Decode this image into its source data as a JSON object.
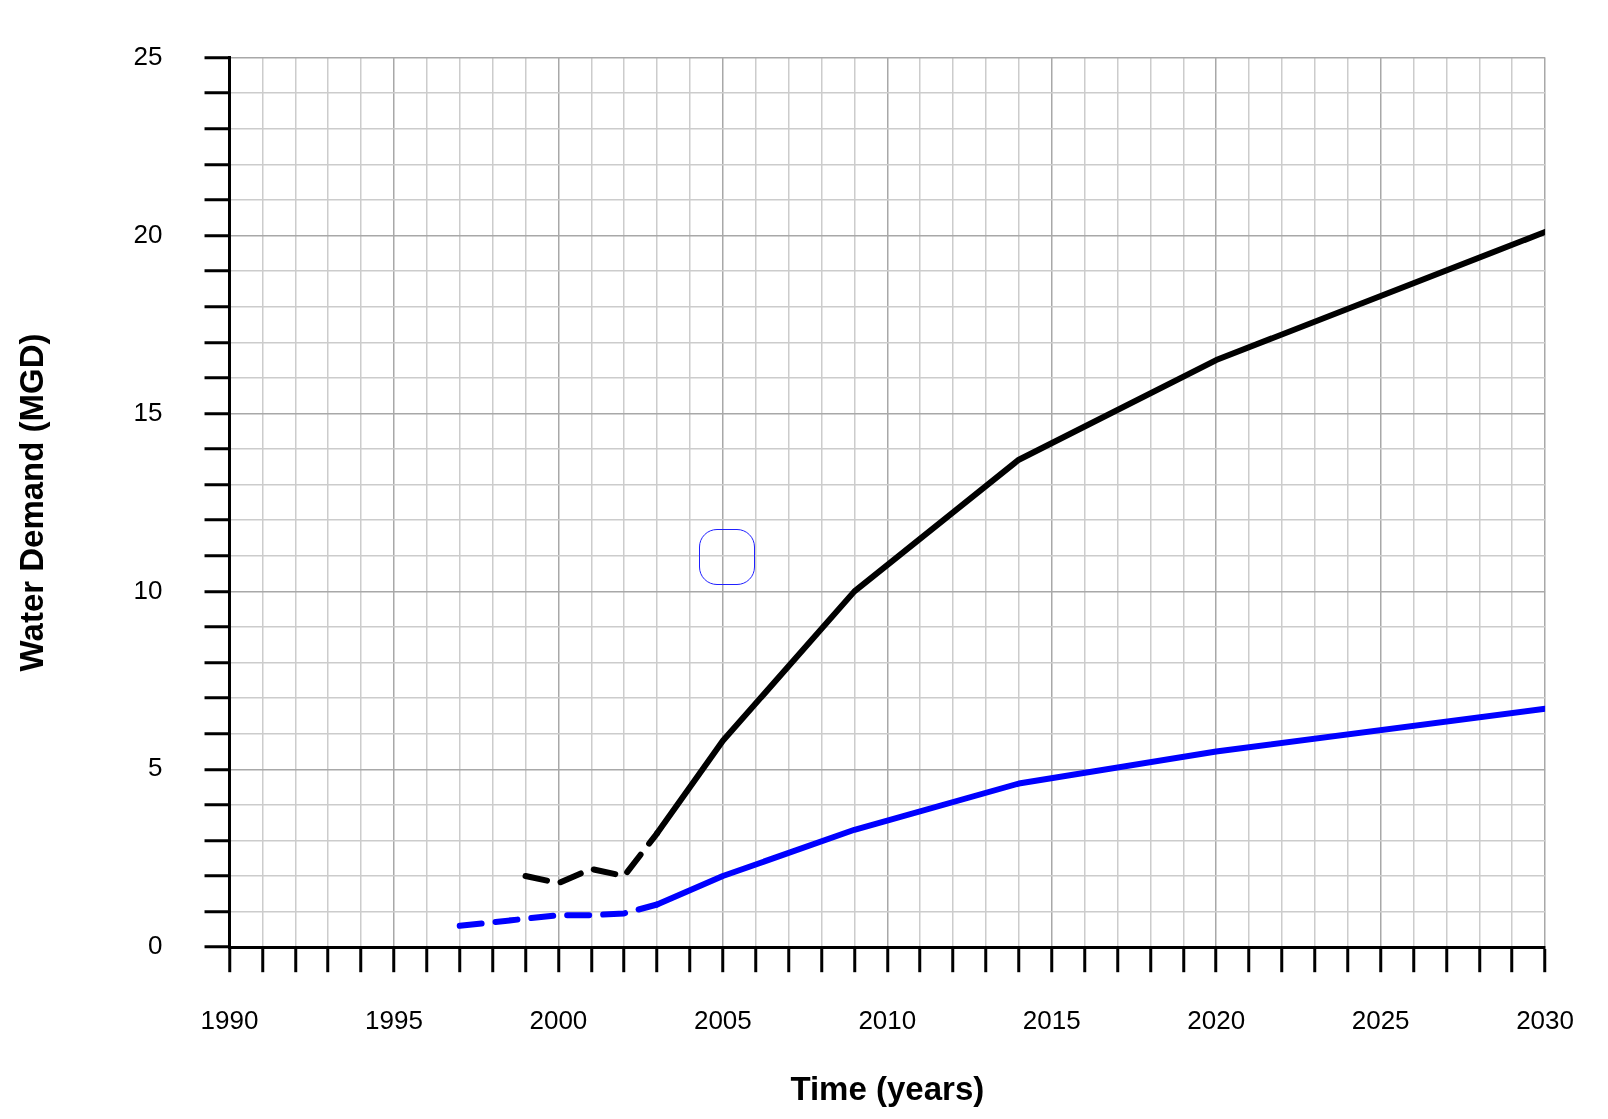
{
  "chart_data": {
    "type": "line",
    "xlabel": "Time (years)",
    "ylabel": "Water Demand (MGD)",
    "xlim": [
      1990,
      2030
    ],
    "ylim": [
      0,
      25
    ],
    "xticks": [
      1990,
      {
        "value": 1991,
        "label": null
      },
      {
        "value": 1992,
        "label": null
      },
      {
        "value": 1993,
        "label": null
      },
      {
        "value": 1994,
        "label": null
      },
      1995,
      {
        "value": 1996,
        "label": null
      },
      {
        "value": 1997,
        "label": null
      },
      {
        "value": 1998,
        "label": null
      },
      {
        "value": 1999,
        "label": null
      },
      2000,
      {
        "value": 2001,
        "label": null
      },
      {
        "value": 2002,
        "label": null
      },
      {
        "value": 2003,
        "label": null
      },
      {
        "value": 2004,
        "label": null
      },
      2005,
      {
        "value": 2006,
        "label": null
      },
      {
        "value": 2007,
        "label": null
      },
      {
        "value": 2008,
        "label": null
      },
      {
        "value": 2009,
        "label": null
      },
      2010,
      {
        "value": 2011,
        "label": null
      },
      {
        "value": 2012,
        "label": null
      },
      {
        "value": 2013,
        "label": null
      },
      {
        "value": 2014,
        "label": null
      },
      2015,
      {
        "value": 2016,
        "label": null
      },
      {
        "value": 2017,
        "label": null
      },
      {
        "value": 2018,
        "label": null
      },
      {
        "value": 2019,
        "label": null
      },
      2020,
      {
        "value": 2021,
        "label": null
      },
      {
        "value": 2022,
        "label": null
      },
      {
        "value": 2023,
        "label": null
      },
      {
        "value": 2024,
        "label": null
      },
      2025,
      {
        "value": 2026,
        "label": null
      },
      {
        "value": 2027,
        "label": null
      },
      {
        "value": 2028,
        "label": null
      },
      {
        "value": 2029,
        "label": null
      },
      2030
    ],
    "yticks": [
      0,
      {
        "value": 1,
        "label": null
      },
      {
        "value": 2,
        "label": null
      },
      {
        "value": 3,
        "label": null
      },
      {
        "value": 4,
        "label": null
      },
      5,
      {
        "value": 6,
        "label": null
      },
      {
        "value": 7,
        "label": null
      },
      {
        "value": 8,
        "label": null
      },
      {
        "value": 9,
        "label": null
      },
      10,
      {
        "value": 11,
        "label": null
      },
      {
        "value": 12,
        "label": null
      },
      {
        "value": 13,
        "label": null
      },
      {
        "value": 14,
        "label": null
      },
      15,
      {
        "value": 16,
        "label": null
      },
      {
        "value": 17,
        "label": null
      },
      {
        "value": 18,
        "label": null
      },
      {
        "value": 19,
        "label": null
      },
      20,
      {
        "value": 21,
        "label": null
      },
      {
        "value": 22,
        "label": null
      },
      {
        "value": 23,
        "label": null
      },
      {
        "value": 24,
        "label": null
      },
      25
    ],
    "grid": true,
    "legend": false,
    "marker": "none",
    "series": [
      {
        "color": "#000000",
        "line_style": "dashed",
        "x": [
          1999,
          2000,
          2001,
          2002,
          2003
        ],
        "values": [
          2.0,
          1.8,
          2.2,
          2.0,
          3.2
        ]
      },
      {
        "color": "#000000",
        "line_style": "solid",
        "x": [
          2003,
          2005,
          2009,
          2014,
          2020,
          2030
        ],
        "values": [
          3.2,
          5.8,
          10.0,
          13.7,
          16.5,
          20.1
        ]
      },
      {
        "color": "#0000ff",
        "line_style": "dashed",
        "x": [
          1997,
          1998,
          1999,
          2000,
          2001,
          2002,
          2003
        ],
        "values": [
          0.6,
          0.7,
          0.8,
          0.9,
          0.9,
          0.95,
          1.2
        ]
      },
      {
        "color": "#0000ff",
        "line_style": "solid",
        "x": [
          2003,
          2005,
          2009,
          2014,
          2020,
          2030
        ],
        "values": [
          1.2,
          2.0,
          3.3,
          4.6,
          5.5,
          6.7
        ]
      }
    ]
  }
}
